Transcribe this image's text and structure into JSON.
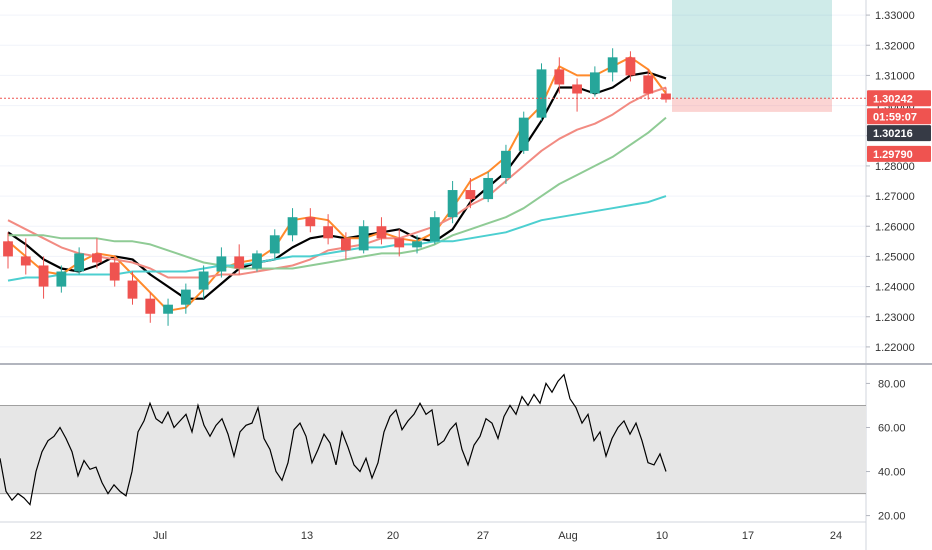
{
  "chart_data": [
    {
      "type": "candlestick",
      "title": "",
      "ylim": [
        1.215,
        1.335
      ],
      "y_ticks": [
        "1.22000",
        "1.23000",
        "1.24000",
        "1.25000",
        "1.26000",
        "1.27000",
        "1.28000",
        "1.29000",
        "1.30000",
        "1.31000",
        "1.32000",
        "1.33000"
      ],
      "x_ticks": [
        "22",
        "Jul",
        "13",
        "20",
        "27",
        "Aug",
        "10",
        "17",
        "24"
      ],
      "price_tags": {
        "last": "1.30242",
        "countdown": "01:59:07",
        "entry": "1.30216",
        "stop": "1.29790"
      },
      "moving_averages": [
        {
          "color": "#000000",
          "values": [
            1.258,
            1.254,
            1.249,
            1.246,
            1.245,
            1.247,
            1.25,
            1.249,
            1.244,
            1.24,
            1.236,
            1.236,
            1.241,
            1.246,
            1.248,
            1.249,
            1.253,
            1.256,
            1.257,
            1.256,
            1.257,
            1.258,
            1.259,
            1.256,
            1.255,
            1.259,
            1.268,
            1.273,
            1.278,
            1.286,
            1.295,
            1.306,
            1.306,
            1.304,
            1.306,
            1.31,
            1.311,
            1.309
          ]
        },
        {
          "color": "#ff8a2b",
          "values": [
            1.255,
            1.25,
            1.245,
            1.244,
            1.248,
            1.251,
            1.25,
            1.244,
            1.238,
            1.232,
            1.233,
            1.239,
            1.246,
            1.248,
            1.249,
            1.253,
            1.262,
            1.263,
            1.262,
            1.256,
            1.256,
            1.258,
            1.256,
            1.255,
            1.258,
            1.266,
            1.275,
            1.278,
            1.283,
            1.294,
            1.3,
            1.313,
            1.31,
            1.31,
            1.313,
            1.316,
            1.312,
            1.304
          ]
        },
        {
          "color": "#f28b82",
          "values": [
            1.262,
            1.259,
            1.256,
            1.253,
            1.251,
            1.25,
            1.249,
            1.248,
            1.246,
            1.243,
            1.243,
            1.243,
            1.244,
            1.244,
            1.245,
            1.246,
            1.247,
            1.249,
            1.252,
            1.253,
            1.254,
            1.256,
            1.256,
            1.258,
            1.26,
            1.263,
            1.267,
            1.27,
            1.275,
            1.28,
            1.285,
            1.289,
            1.292,
            1.294,
            1.297,
            1.301,
            1.304,
            1.306
          ]
        },
        {
          "color": "#8fcb95",
          "values": [
            1.257,
            1.257,
            1.257,
            1.256,
            1.256,
            1.256,
            1.255,
            1.255,
            1.254,
            1.252,
            1.25,
            1.248,
            1.247,
            1.246,
            1.246,
            1.246,
            1.246,
            1.247,
            1.248,
            1.249,
            1.25,
            1.251,
            1.251,
            1.252,
            1.254,
            1.257,
            1.259,
            1.261,
            1.263,
            1.266,
            1.27,
            1.274,
            1.277,
            1.28,
            1.283,
            1.287,
            1.291,
            1.296
          ]
        },
        {
          "color": "#4ccfd0",
          "values": [
            1.242,
            1.243,
            1.243,
            1.244,
            1.244,
            1.244,
            1.244,
            1.245,
            1.245,
            1.245,
            1.245,
            1.246,
            1.247,
            1.247,
            1.248,
            1.249,
            1.25,
            1.25,
            1.251,
            1.252,
            1.253,
            1.253,
            1.254,
            1.254,
            1.255,
            1.255,
            1.256,
            1.257,
            1.258,
            1.26,
            1.262,
            1.263,
            1.264,
            1.265,
            1.266,
            1.267,
            1.268,
            1.27
          ]
        }
      ],
      "candles": [
        [
          1.255,
          1.258,
          1.246,
          1.25
        ],
        [
          1.25,
          1.256,
          1.244,
          1.247
        ],
        [
          1.247,
          1.25,
          1.236,
          1.24
        ],
        [
          1.24,
          1.247,
          1.238,
          1.245
        ],
        [
          1.245,
          1.253,
          1.244,
          1.251
        ],
        [
          1.251,
          1.256,
          1.246,
          1.248
        ],
        [
          1.248,
          1.25,
          1.24,
          1.242
        ],
        [
          1.242,
          1.245,
          1.234,
          1.236
        ],
        [
          1.236,
          1.238,
          1.228,
          1.231
        ],
        [
          1.231,
          1.236,
          1.227,
          1.234
        ],
        [
          1.234,
          1.241,
          1.231,
          1.239
        ],
        [
          1.239,
          1.247,
          1.236,
          1.245
        ],
        [
          1.245,
          1.253,
          1.243,
          1.25
        ],
        [
          1.25,
          1.254,
          1.244,
          1.246
        ],
        [
          1.246,
          1.252,
          1.245,
          1.251
        ],
        [
          1.251,
          1.259,
          1.249,
          1.257
        ],
        [
          1.257,
          1.266,
          1.255,
          1.263
        ],
        [
          1.263,
          1.266,
          1.258,
          1.26
        ],
        [
          1.26,
          1.264,
          1.254,
          1.256
        ],
        [
          1.256,
          1.258,
          1.249,
          1.252
        ],
        [
          1.252,
          1.262,
          1.251,
          1.26
        ],
        [
          1.26,
          1.263,
          1.254,
          1.256
        ],
        [
          1.256,
          1.259,
          1.25,
          1.253
        ],
        [
          1.253,
          1.257,
          1.251,
          1.255
        ],
        [
          1.255,
          1.265,
          1.254,
          1.263
        ],
        [
          1.263,
          1.275,
          1.261,
          1.272
        ],
        [
          1.272,
          1.276,
          1.266,
          1.269
        ],
        [
          1.269,
          1.278,
          1.268,
          1.276
        ],
        [
          1.276,
          1.287,
          1.274,
          1.285
        ],
        [
          1.285,
          1.298,
          1.284,
          1.296
        ],
        [
          1.296,
          1.314,
          1.295,
          1.312
        ],
        [
          1.312,
          1.316,
          1.304,
          1.307
        ],
        [
          1.307,
          1.309,
          1.298,
          1.304
        ],
        [
          1.304,
          1.313,
          1.303,
          1.311
        ],
        [
          1.311,
          1.319,
          1.308,
          1.316
        ],
        [
          1.316,
          1.318,
          1.308,
          1.31
        ],
        [
          1.31,
          1.312,
          1.302,
          1.304
        ],
        [
          1.304,
          1.306,
          1.301,
          1.302
        ]
      ],
      "trade_box": {
        "entry": 1.30216,
        "target": 1.335,
        "stop": 1.2979
      },
      "last_price": 1.30242
    },
    {
      "type": "line",
      "title": "",
      "ylim": [
        18,
        87
      ],
      "y_ticks": [
        "20.00",
        "40.00",
        "60.00",
        "80.00"
      ],
      "band": [
        30,
        70
      ],
      "color": "#000000",
      "values": [
        46,
        31,
        27,
        30,
        28,
        25,
        40,
        49,
        54,
        56,
        60,
        55,
        49,
        38,
        45,
        41,
        42,
        35,
        30,
        34,
        31,
        29,
        40,
        58,
        63,
        71,
        64,
        62,
        67,
        60,
        63,
        66,
        58,
        70,
        61,
        56,
        61,
        64,
        57,
        47,
        58,
        61,
        62,
        69,
        55,
        50,
        40,
        36,
        44,
        59,
        62,
        56,
        44,
        50,
        57,
        53,
        43,
        58,
        51,
        43,
        40,
        46,
        37,
        44,
        58,
        65,
        68,
        59,
        63,
        66,
        71,
        66,
        68,
        52,
        54,
        59,
        62,
        50,
        43,
        52,
        56,
        64,
        62,
        55,
        65,
        70,
        66,
        74,
        70,
        75,
        71,
        80,
        76,
        81,
        84,
        73,
        69,
        62,
        66,
        54,
        58,
        47,
        55,
        60,
        63,
        57,
        62,
        54,
        44,
        43,
        48,
        40
      ],
      "last_value_text": ""
    }
  ]
}
